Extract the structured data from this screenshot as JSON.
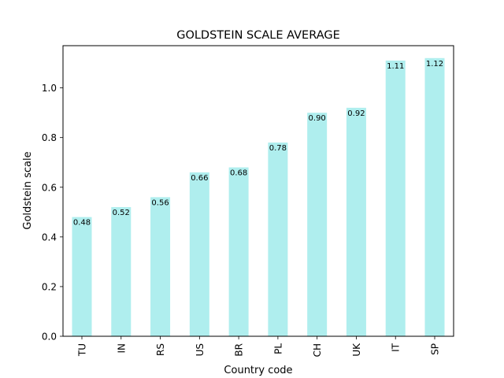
{
  "chart_data": {
    "type": "bar",
    "title": "GOLDSTEIN SCALE AVERAGE",
    "xlabel": "Country code",
    "ylabel": "Goldstein scale",
    "categories": [
      "TU",
      "IN",
      "RS",
      "US",
      "BR",
      "PL",
      "CH",
      "UK",
      "IT",
      "SP"
    ],
    "values": [
      0.48,
      0.52,
      0.56,
      0.66,
      0.68,
      0.78,
      0.9,
      0.92,
      1.11,
      1.12
    ],
    "data_labels": [
      "0.48",
      "0.52",
      "0.56",
      "0.66",
      "0.68",
      "0.78",
      "0.90",
      "0.92",
      "1.11",
      "1.12"
    ],
    "ylim": [
      0,
      1.17
    ],
    "yticks": [
      0.0,
      0.2,
      0.4,
      0.6,
      0.8,
      1.0
    ],
    "ytick_labels": [
      "0.0",
      "0.2",
      "0.4",
      "0.6",
      "0.8",
      "1.0"
    ],
    "grid": false,
    "bar_color": "#afeeee"
  }
}
